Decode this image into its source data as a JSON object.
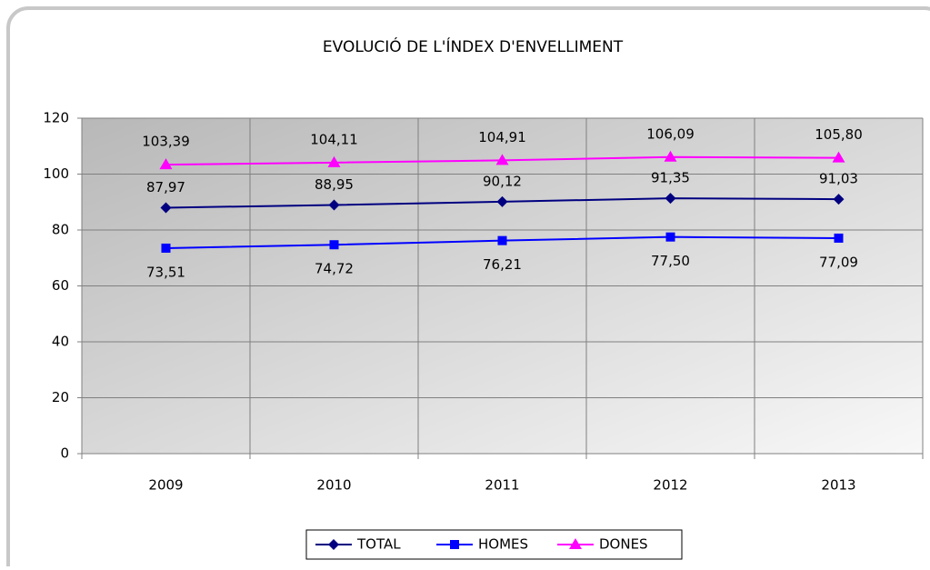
{
  "chart_data": {
    "type": "line",
    "title": "EVOLUCIÓ DE L'ÍNDEX D'ENVELLIMENT",
    "categories": [
      "2009",
      "2010",
      "2011",
      "2012",
      "2013"
    ],
    "series": [
      {
        "name": "TOTAL",
        "color": "#000080",
        "marker": "diamond",
        "values": [
          87.97,
          88.95,
          90.12,
          91.35,
          91.03
        ],
        "value_labels": [
          "87,97",
          "88,95",
          "90,12",
          "91,35",
          "91,03"
        ]
      },
      {
        "name": "HOMES",
        "color": "#0000ff",
        "marker": "square",
        "values": [
          73.51,
          74.72,
          76.21,
          77.5,
          77.09
        ],
        "value_labels": [
          "73,51",
          "74,72",
          "76,21",
          "77,50",
          "77,09"
        ]
      },
      {
        "name": "DONES",
        "color": "#ff00ff",
        "marker": "triangle",
        "values": [
          103.39,
          104.11,
          104.91,
          106.09,
          105.8
        ],
        "value_labels": [
          "103,39",
          "104,11",
          "104,91",
          "106,09",
          "105,80"
        ]
      }
    ],
    "ylim": [
      0,
      120
    ],
    "yticks": [
      0,
      20,
      40,
      60,
      80,
      100,
      120
    ],
    "grid": true,
    "legend": "bottom"
  }
}
